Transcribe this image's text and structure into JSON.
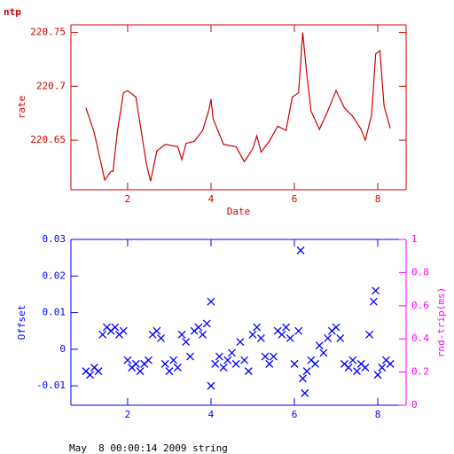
{
  "footer": "May  8 00:00:14 2009 string",
  "chart_data": [
    {
      "type": "line",
      "title": "ntp",
      "xlabel": "Date",
      "ylabel": "rate",
      "color": "#cc0000",
      "x": [
        1.0,
        1.2,
        1.45,
        1.6,
        1.65,
        1.75,
        1.9,
        2.0,
        2.2,
        2.3,
        2.45,
        2.55,
        2.7,
        2.9,
        3.2,
        3.3,
        3.4,
        3.6,
        3.8,
        3.95,
        4.0,
        4.05,
        4.3,
        4.6,
        4.8,
        5.0,
        5.1,
        5.2,
        5.4,
        5.6,
        5.8,
        5.95,
        6.1,
        6.2,
        6.3,
        6.4,
        6.6,
        6.8,
        7.0,
        7.2,
        7.4,
        7.6,
        7.7,
        7.85,
        7.95,
        8.05,
        8.15,
        8.3
      ],
      "values": [
        220.68,
        220.657,
        220.613,
        220.621,
        220.621,
        220.657,
        220.694,
        220.696,
        220.69,
        220.665,
        220.628,
        220.612,
        220.64,
        220.646,
        220.644,
        220.632,
        220.647,
        220.649,
        220.659,
        220.678,
        220.688,
        220.67,
        220.646,
        220.644,
        220.63,
        220.642,
        220.654,
        220.639,
        220.649,
        220.663,
        220.659,
        220.69,
        220.694,
        220.75,
        220.71,
        220.677,
        220.66,
        220.677,
        220.696,
        220.68,
        220.672,
        220.66,
        220.65,
        220.673,
        220.73,
        220.733,
        220.682,
        220.661
      ],
      "xlim": [
        0.64,
        8.68
      ],
      "ylim": [
        220.604,
        220.757
      ],
      "xticks": [
        2,
        4,
        6,
        8
      ],
      "yticks": [
        220.65,
        220.7,
        220.75
      ]
    },
    {
      "type": "scatter",
      "ylabel": "Offset",
      "y2label": "rnd-trip(ms)",
      "color": "#0000ff",
      "y2color": "#ff00ff",
      "x": [
        1.0,
        1.1,
        1.2,
        1.3,
        1.4,
        1.5,
        1.6,
        1.7,
        1.8,
        1.9,
        2.0,
        2.1,
        2.2,
        2.3,
        2.4,
        2.5,
        2.6,
        2.7,
        2.8,
        2.9,
        3.0,
        3.1,
        3.2,
        3.3,
        3.4,
        3.5,
        3.6,
        3.7,
        3.8,
        3.9,
        4.0,
        4.0,
        4.1,
        4.2,
        4.3,
        4.4,
        4.5,
        4.6,
        4.7,
        4.8,
        4.9,
        5.0,
        5.1,
        5.2,
        5.3,
        5.4,
        5.5,
        5.6,
        5.7,
        5.8,
        5.9,
        6.0,
        6.1,
        6.15,
        6.2,
        6.25,
        6.3,
        6.4,
        6.5,
        6.6,
        6.7,
        6.8,
        6.9,
        7.0,
        7.1,
        7.2,
        7.3,
        7.4,
        7.5,
        7.6,
        7.7,
        7.8,
        7.9,
        7.95,
        8.0,
        8.1,
        8.2,
        8.3
      ],
      "values": [
        -0.006,
        -0.007,
        -0.005,
        -0.006,
        0.004,
        0.006,
        0.005,
        0.006,
        0.004,
        0.005,
        -0.003,
        -0.005,
        -0.004,
        -0.006,
        -0.004,
        -0.003,
        0.004,
        0.005,
        0.003,
        -0.004,
        -0.006,
        -0.003,
        -0.005,
        0.004,
        0.002,
        -0.002,
        0.005,
        0.006,
        0.004,
        0.007,
        -0.01,
        0.013,
        -0.004,
        -0.002,
        -0.005,
        -0.003,
        -0.001,
        -0.004,
        0.002,
        -0.003,
        -0.006,
        0.004,
        0.006,
        0.003,
        -0.002,
        -0.004,
        -0.002,
        0.005,
        0.004,
        0.006,
        0.003,
        -0.004,
        0.005,
        0.027,
        -0.008,
        -0.012,
        -0.006,
        -0.003,
        -0.004,
        0.001,
        -0.001,
        0.003,
        0.005,
        0.006,
        0.003,
        -0.004,
        -0.005,
        -0.003,
        -0.006,
        -0.004,
        -0.005,
        0.004,
        0.013,
        0.016,
        -0.007,
        -0.005,
        -0.003,
        -0.004
      ],
      "xlim": [
        0.64,
        8.68
      ],
      "ylim": [
        -0.0153,
        0.03
      ],
      "y2lim": [
        0,
        1
      ],
      "xticks": [
        2,
        4,
        6,
        8
      ],
      "yticks": [
        -0.01,
        0,
        0.01,
        0.02,
        0.03
      ],
      "y2ticks": [
        0,
        0.2,
        0.4,
        0.6,
        0.8,
        1
      ]
    }
  ]
}
